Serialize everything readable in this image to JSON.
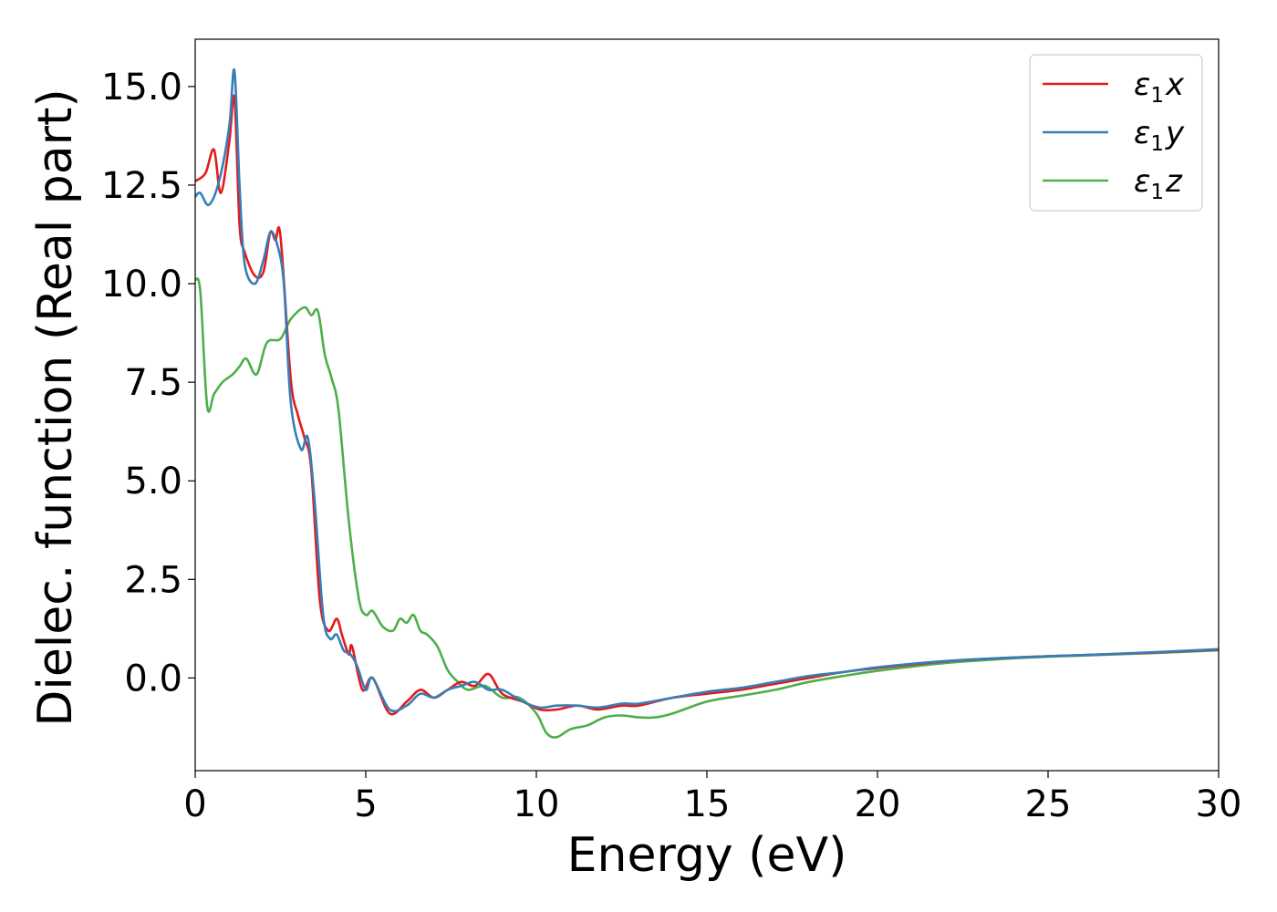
{
  "chart_data": {
    "type": "line",
    "xlabel": "Energy (eV)",
    "ylabel": "Dielec. function (Real part)",
    "xlim": [
      0,
      30
    ],
    "ylim": [
      -2.35,
      16.2
    ],
    "xticks": [
      0,
      5,
      10,
      15,
      20,
      25,
      30
    ],
    "xtick_labels": [
      "0",
      "5",
      "10",
      "15",
      "20",
      "25",
      "30"
    ],
    "yticks": [
      0,
      2.5,
      5,
      7.5,
      10,
      12.5,
      15
    ],
    "ytick_labels": [
      "0.0",
      "2.5",
      "5.0",
      "7.5",
      "10.0",
      "12.5",
      "15.0"
    ],
    "grid": false,
    "legend_position": "top-right",
    "series": [
      {
        "name": "ε₁x",
        "legend_base": "ε",
        "legend_sub": "1",
        "legend_suffix": "x",
        "color": "#e41a1c",
        "x": [
          0,
          0.3,
          0.55,
          0.75,
          1.0,
          1.15,
          1.3,
          1.45,
          1.75,
          2.0,
          2.2,
          2.35,
          2.5,
          2.8,
          3.0,
          3.2,
          3.4,
          3.65,
          3.9,
          4.15,
          4.3,
          4.5,
          4.6,
          4.9,
          5.2,
          5.7,
          6.2,
          6.6,
          7.0,
          7.4,
          7.8,
          8.2,
          8.6,
          9.0,
          9.6,
          10.1,
          10.6,
          11.2,
          11.8,
          12.5,
          13.0,
          14.0,
          15.0,
          16.0,
          17.0,
          18.0,
          19.0,
          20.0,
          22.0,
          24.0,
          26.0,
          28.0,
          30.0
        ],
        "y": [
          12.6,
          12.8,
          13.4,
          12.3,
          13.6,
          14.7,
          11.5,
          10.8,
          10.2,
          10.3,
          11.3,
          11.1,
          11.2,
          7.6,
          6.7,
          6.1,
          5.3,
          2.0,
          1.2,
          1.5,
          1.1,
          0.6,
          0.8,
          -0.3,
          0.0,
          -0.9,
          -0.6,
          -0.3,
          -0.5,
          -0.3,
          -0.1,
          -0.2,
          0.1,
          -0.4,
          -0.6,
          -0.8,
          -0.8,
          -0.7,
          -0.8,
          -0.7,
          -0.7,
          -0.5,
          -0.4,
          -0.3,
          -0.15,
          0.0,
          0.15,
          0.25,
          0.42,
          0.52,
          0.58,
          0.64,
          0.72
        ]
      },
      {
        "name": "ε₁y",
        "legend_base": "ε",
        "legend_sub": "1",
        "legend_suffix": "y",
        "color": "#377eb8",
        "x": [
          0,
          0.15,
          0.4,
          0.7,
          1.0,
          1.15,
          1.3,
          1.45,
          1.75,
          2.0,
          2.2,
          2.4,
          2.6,
          2.8,
          3.1,
          3.3,
          3.5,
          3.75,
          3.95,
          4.15,
          4.35,
          4.55,
          4.75,
          5.0,
          5.2,
          5.7,
          6.2,
          6.6,
          7.0,
          7.4,
          7.8,
          8.2,
          8.6,
          9.0,
          9.6,
          10.1,
          10.6,
          11.2,
          11.8,
          12.5,
          13.0,
          14.0,
          15.0,
          16.0,
          17.0,
          18.0,
          19.0,
          20.0,
          22.0,
          24.0,
          26.0,
          28.0,
          30.0
        ],
        "y": [
          12.2,
          12.3,
          12.0,
          12.6,
          14.0,
          15.4,
          12.5,
          10.5,
          10.0,
          10.6,
          11.3,
          11.0,
          10.0,
          7.0,
          5.8,
          6.1,
          4.5,
          1.6,
          1.0,
          1.1,
          0.7,
          0.6,
          0.3,
          -0.3,
          0.0,
          -0.8,
          -0.7,
          -0.4,
          -0.5,
          -0.3,
          -0.2,
          -0.1,
          -0.3,
          -0.3,
          -0.6,
          -0.75,
          -0.7,
          -0.7,
          -0.75,
          -0.65,
          -0.65,
          -0.5,
          -0.35,
          -0.25,
          -0.1,
          0.05,
          0.15,
          0.27,
          0.43,
          0.52,
          0.58,
          0.65,
          0.73
        ]
      },
      {
        "name": "ε₁z",
        "legend_base": "ε",
        "legend_sub": "1",
        "legend_suffix": "z",
        "color": "#4daf4a",
        "x": [
          0,
          0.15,
          0.35,
          0.55,
          0.8,
          1.1,
          1.3,
          1.5,
          1.8,
          2.1,
          2.5,
          2.8,
          3.2,
          3.4,
          3.6,
          3.8,
          4.0,
          4.2,
          4.5,
          4.8,
          5.0,
          5.2,
          5.5,
          5.8,
          6.0,
          6.2,
          6.4,
          6.6,
          6.8,
          7.1,
          7.4,
          7.7,
          8.0,
          8.5,
          9.0,
          9.5,
          10.0,
          10.3,
          10.6,
          11.0,
          11.5,
          12.0,
          12.5,
          13.0,
          13.5,
          14.0,
          15.0,
          16.0,
          17.0,
          18.0,
          19.0,
          20.0,
          22.0,
          24.0,
          26.0,
          28.0,
          30.0
        ],
        "y": [
          10.1,
          9.8,
          6.9,
          7.2,
          7.5,
          7.7,
          7.9,
          8.1,
          7.7,
          8.5,
          8.6,
          9.1,
          9.4,
          9.2,
          9.3,
          8.2,
          7.6,
          6.8,
          4.0,
          2.0,
          1.6,
          1.7,
          1.3,
          1.2,
          1.5,
          1.4,
          1.6,
          1.2,
          1.1,
          0.8,
          0.2,
          -0.1,
          -0.3,
          -0.2,
          -0.5,
          -0.5,
          -0.9,
          -1.4,
          -1.5,
          -1.3,
          -1.2,
          -1.0,
          -0.95,
          -1.0,
          -1.0,
          -0.9,
          -0.6,
          -0.45,
          -0.3,
          -0.1,
          0.05,
          0.18,
          0.38,
          0.5,
          0.57,
          0.63,
          0.7
        ]
      }
    ]
  }
}
